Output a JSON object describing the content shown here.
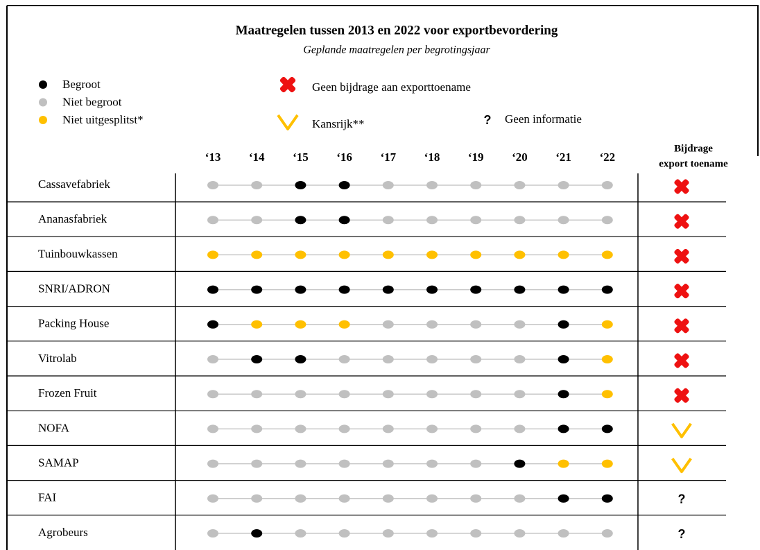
{
  "header": {
    "title": "Maatregelen tussen 2013 en 2022 voor exportbevordering",
    "subtitle": "Geplande maatregelen per begrotingsjaar"
  },
  "legend": {
    "dots": [
      {
        "label": "Begroot",
        "color": "#000000"
      },
      {
        "label": "Niet begroot",
        "color": "#c0c0c0"
      },
      {
        "label": "Niet uitgesplitst*",
        "color": "#ffc000"
      }
    ],
    "symbols": [
      {
        "kind": "cross",
        "label": "Geen bijdrage aan exporttoename",
        "color": "#ee1111"
      },
      {
        "kind": "check",
        "label": "Kansrijk**",
        "color": "#ffc000"
      },
      {
        "kind": "question",
        "symbol": "?",
        "label": "Geen informatie",
        "color": "#000000"
      }
    ]
  },
  "table": {
    "years": [
      "‘13",
      "‘14",
      "‘15",
      "‘16",
      "‘17",
      "‘18",
      "‘19",
      "‘20",
      "‘21",
      "‘22"
    ],
    "contribution_header": [
      "Bijdrage",
      "export toename"
    ],
    "rows": [
      {
        "name": "Cassavefabriek",
        "status": [
          1,
          1,
          0,
          0,
          1,
          1,
          1,
          1,
          1,
          1
        ],
        "contribution": 0
      },
      {
        "name": "Ananasfabriek",
        "status": [
          1,
          1,
          0,
          0,
          1,
          1,
          1,
          1,
          1,
          1
        ],
        "contribution": 0
      },
      {
        "name": "Tuinbouwkassen",
        "status": [
          2,
          2,
          2,
          2,
          2,
          2,
          2,
          2,
          2,
          2
        ],
        "contribution": 0
      },
      {
        "name": "SNRI/ADRON",
        "status": [
          0,
          0,
          0,
          0,
          0,
          0,
          0,
          0,
          0,
          0
        ],
        "contribution": 0
      },
      {
        "name": "Packing House",
        "status": [
          0,
          2,
          2,
          2,
          1,
          1,
          1,
          1,
          0,
          2
        ],
        "contribution": 0
      },
      {
        "name": "Vitrolab",
        "status": [
          1,
          0,
          0,
          1,
          1,
          1,
          1,
          1,
          0,
          2
        ],
        "contribution": 0
      },
      {
        "name": "Frozen Fruit",
        "status": [
          1,
          1,
          1,
          1,
          1,
          1,
          1,
          1,
          0,
          2
        ],
        "contribution": 0
      },
      {
        "name": "NOFA",
        "status": [
          1,
          1,
          1,
          1,
          1,
          1,
          1,
          1,
          0,
          0
        ],
        "contribution": 1
      },
      {
        "name": "SAMAP",
        "status": [
          1,
          1,
          1,
          1,
          1,
          1,
          1,
          0,
          2,
          2
        ],
        "contribution": 1
      },
      {
        "name": "FAI",
        "status": [
          1,
          1,
          1,
          1,
          1,
          1,
          1,
          1,
          0,
          0
        ],
        "contribution": 2
      },
      {
        "name": "Agrobeurs",
        "status": [
          1,
          0,
          1,
          1,
          1,
          1,
          1,
          1,
          1,
          1
        ],
        "contribution": 2
      }
    ]
  }
}
